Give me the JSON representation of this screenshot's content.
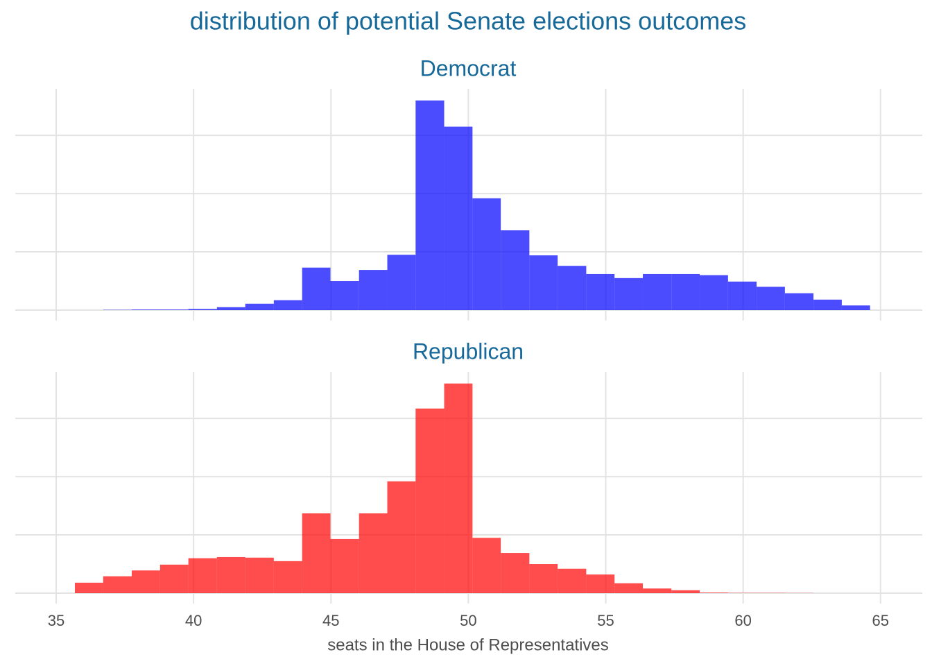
{
  "title": "distribution of potential Senate elections outcomes",
  "chart_data": [
    {
      "type": "histogram",
      "title": "Democrat",
      "color": "#0000ff",
      "bins": [
        35.68,
        36.71,
        37.75,
        38.78,
        39.81,
        40.85,
        41.88,
        42.92,
        43.95,
        44.98,
        46.02,
        47.05,
        48.08,
        49.12,
        50.15,
        51.18,
        52.22,
        53.25,
        54.29,
        55.32,
        56.35,
        57.39,
        58.42,
        59.45,
        60.49,
        61.52,
        62.56,
        63.59,
        64.62
      ],
      "values": [
        0,
        0.005,
        0.01,
        0.01,
        0.02,
        0.05,
        0.11,
        0.17,
        0.73,
        0.5,
        0.69,
        0.95,
        3.6,
        3.15,
        1.92,
        1.37,
        0.94,
        0.76,
        0.62,
        0.55,
        0.62,
        0.62,
        0.6,
        0.49,
        0.4,
        0.29,
        0.18,
        0.08
      ],
      "xlim": [
        33.51,
        66.52
      ],
      "xticks": [
        35,
        40,
        45,
        50,
        55,
        60,
        65
      ],
      "ylim": [
        0,
        3.8
      ],
      "yticks": [
        0,
        1,
        2,
        3
      ],
      "grid": true
    },
    {
      "type": "histogram",
      "title": "Republican",
      "color": "#ff0000",
      "xlabel": "seats in the House of Representatives",
      "bins": [
        35.68,
        36.71,
        37.75,
        38.78,
        39.81,
        40.85,
        41.88,
        42.92,
        43.95,
        44.98,
        46.02,
        47.05,
        48.08,
        49.12,
        50.15,
        51.18,
        52.22,
        53.25,
        54.29,
        55.32,
        56.35,
        57.39,
        58.42,
        59.45,
        60.49,
        61.52,
        62.56,
        63.59,
        64.62
      ],
      "values": [
        0.18,
        0.29,
        0.39,
        0.49,
        0.6,
        0.62,
        0.61,
        0.55,
        1.37,
        0.93,
        1.37,
        1.92,
        3.17,
        3.6,
        0.95,
        0.69,
        0.5,
        0.42,
        0.32,
        0.17,
        0.08,
        0.05,
        0.01,
        0.005,
        0.005,
        0.003,
        0,
        0
      ],
      "xlim": [
        33.51,
        66.52
      ],
      "xticks": [
        35,
        40,
        45,
        50,
        55,
        60,
        65
      ],
      "ylim": [
        0,
        3.8
      ],
      "yticks": [
        0,
        1,
        2,
        3
      ],
      "grid": true
    }
  ]
}
